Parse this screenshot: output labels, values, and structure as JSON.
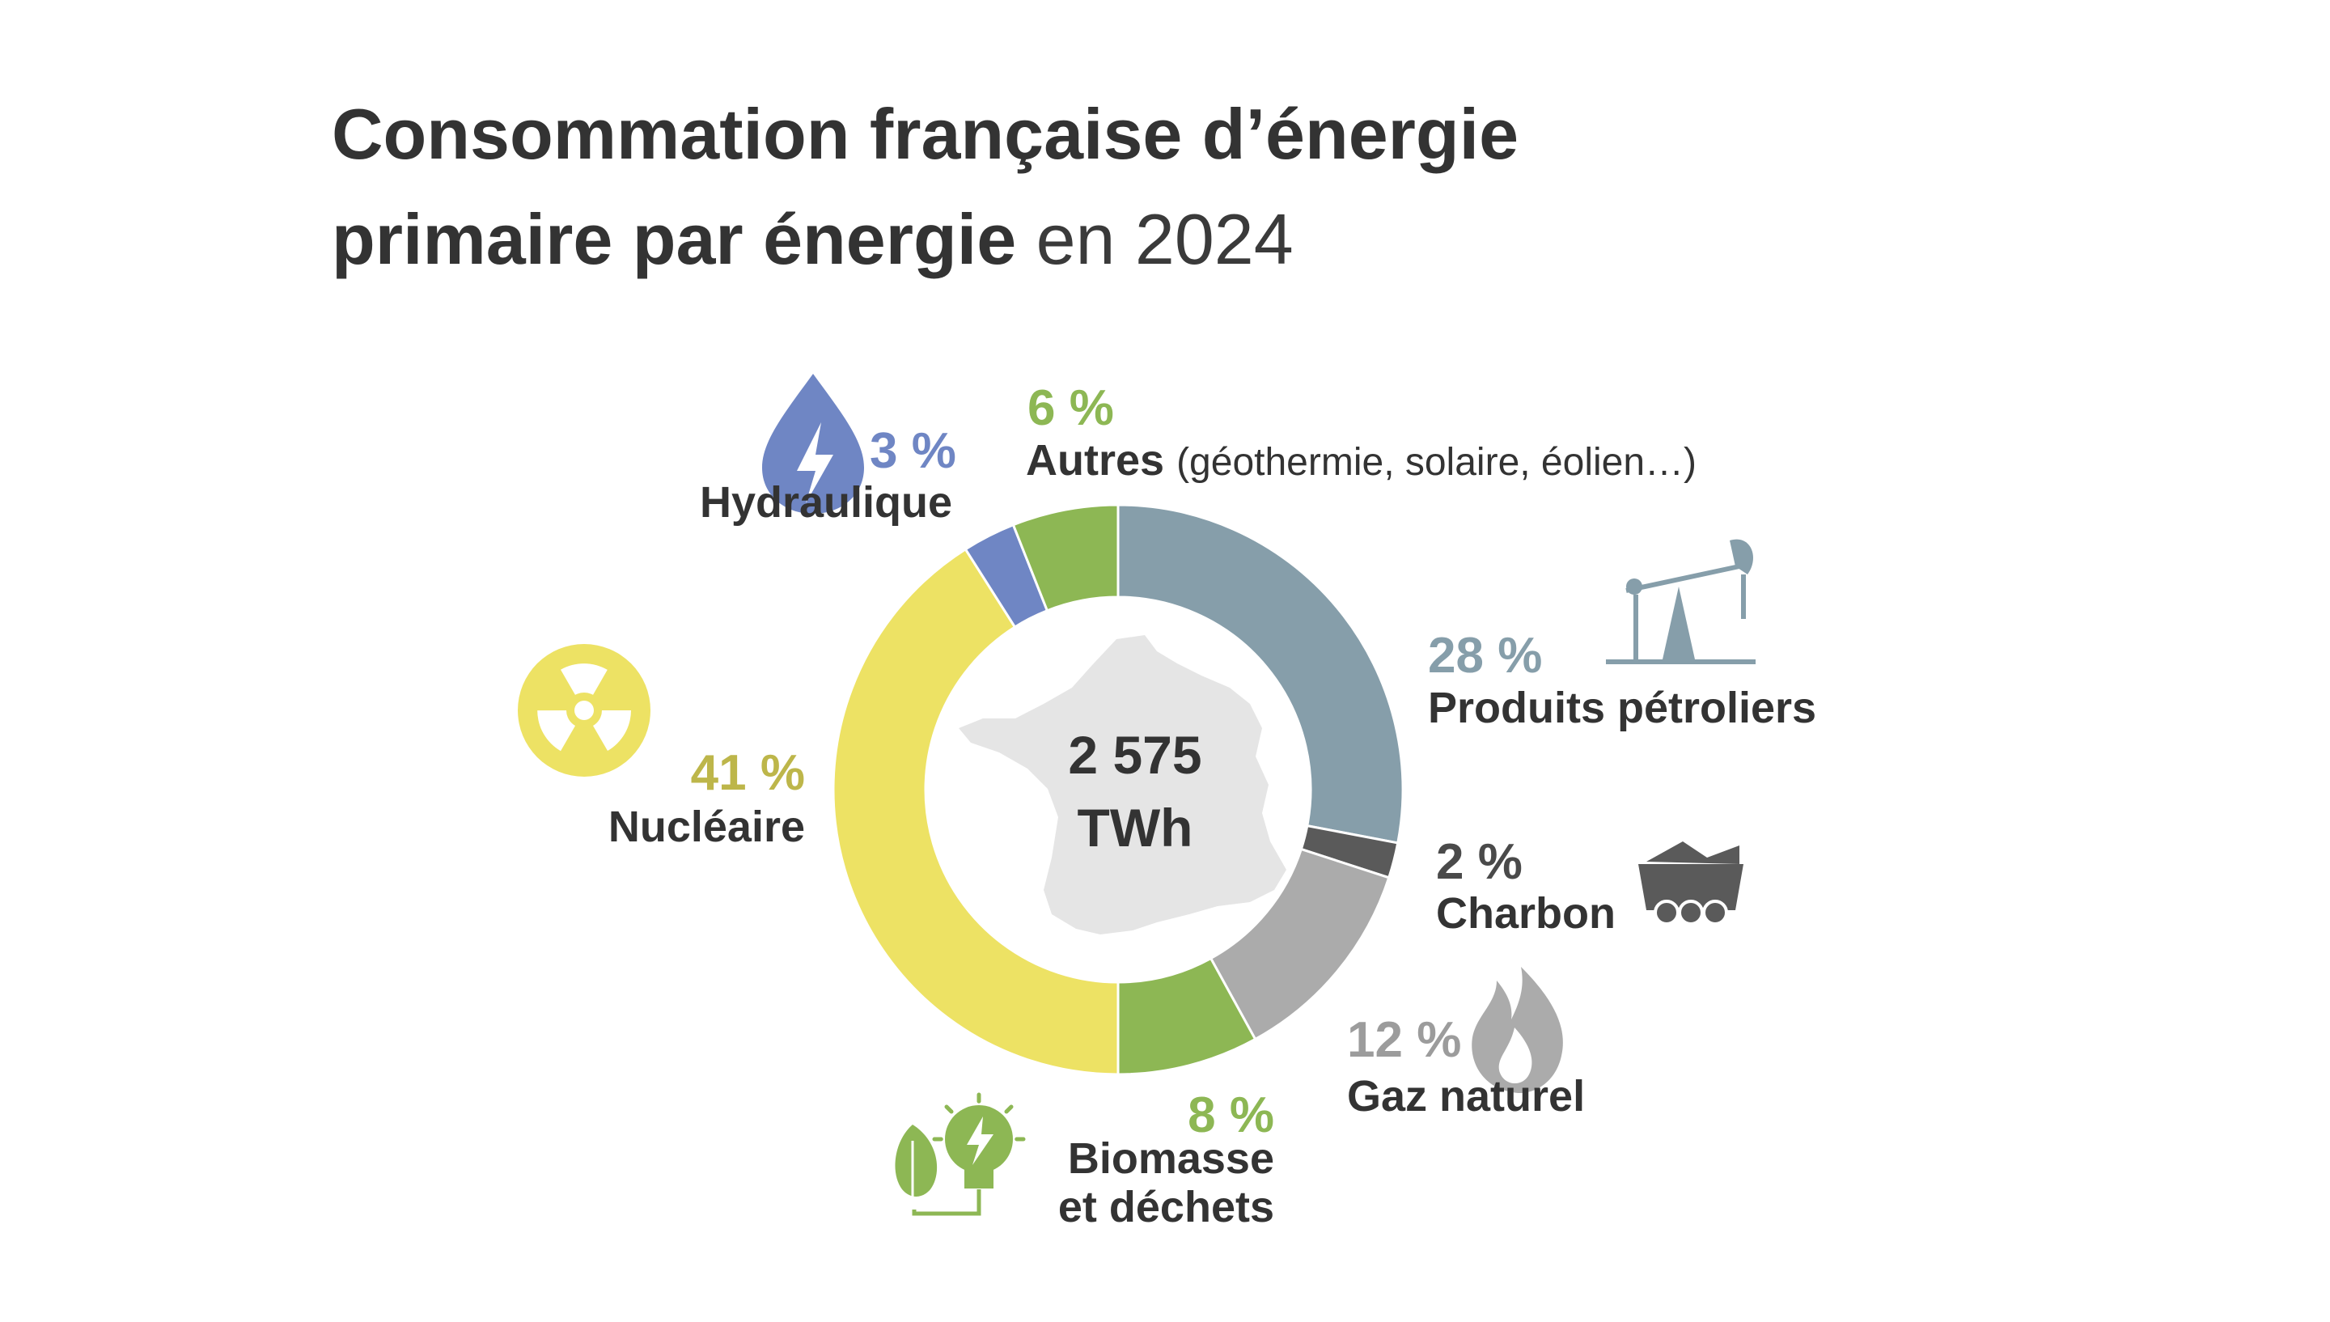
{
  "chart_data": {
    "type": "pie",
    "title": "Consommation française d’énergie",
    "title_line2": "primaire par énergie",
    "title_suffix": "en 2024",
    "center_label": {
      "value": "2 575",
      "unit": "TWh"
    },
    "start_angle_deg": 0,
    "direction": "clockwise",
    "slices": [
      {
        "key": "petrole",
        "pct_label": "28 %",
        "value": 28,
        "label": "Produits pétroliers",
        "detail": "",
        "color": "#869eaa",
        "icon": "oil-pump-icon"
      },
      {
        "key": "charbon",
        "pct_label": "2 %",
        "value": 2,
        "label": "Charbon",
        "detail": "",
        "color": "#5a5a5a",
        "icon": "coal-wagon-icon"
      },
      {
        "key": "gaz",
        "pct_label": "12 %",
        "value": 12,
        "label": "Gaz naturel",
        "detail": "",
        "color": "#ababab",
        "icon": "flame-icon"
      },
      {
        "key": "biomasse",
        "pct_label": "8 %",
        "value": 8,
        "label": "Biomasse",
        "label_line2": "et déchets",
        "detail": "",
        "color": "#8db754",
        "icon": "leaf-bulb-icon"
      },
      {
        "key": "nucleaire",
        "pct_label": "41 %",
        "value": 41,
        "label": "Nucléaire",
        "detail": "",
        "color": "#ede264",
        "icon": "radiation-icon"
      },
      {
        "key": "hydraulique",
        "pct_label": "3 %",
        "value": 3,
        "label": "Hydraulique",
        "detail": "",
        "color": "#6f86c4",
        "icon": "water-drop-bolt-icon"
      },
      {
        "key": "autres",
        "pct_label": "6 %",
        "value": 6,
        "label": "Autres",
        "detail": "(géothermie, solaire, éolien…)",
        "color": "#8db754",
        "icon": ""
      }
    ],
    "label_colors": {
      "petrole": "#869eaa",
      "charbon": "#4a4a4a",
      "gaz": "#9c9c9c",
      "biomasse": "#8db754",
      "nucleaire": "#bdb64a",
      "hydraulique": "#6f86c4",
      "autres": "#8db754"
    },
    "map_color": "#e5e5e5"
  }
}
